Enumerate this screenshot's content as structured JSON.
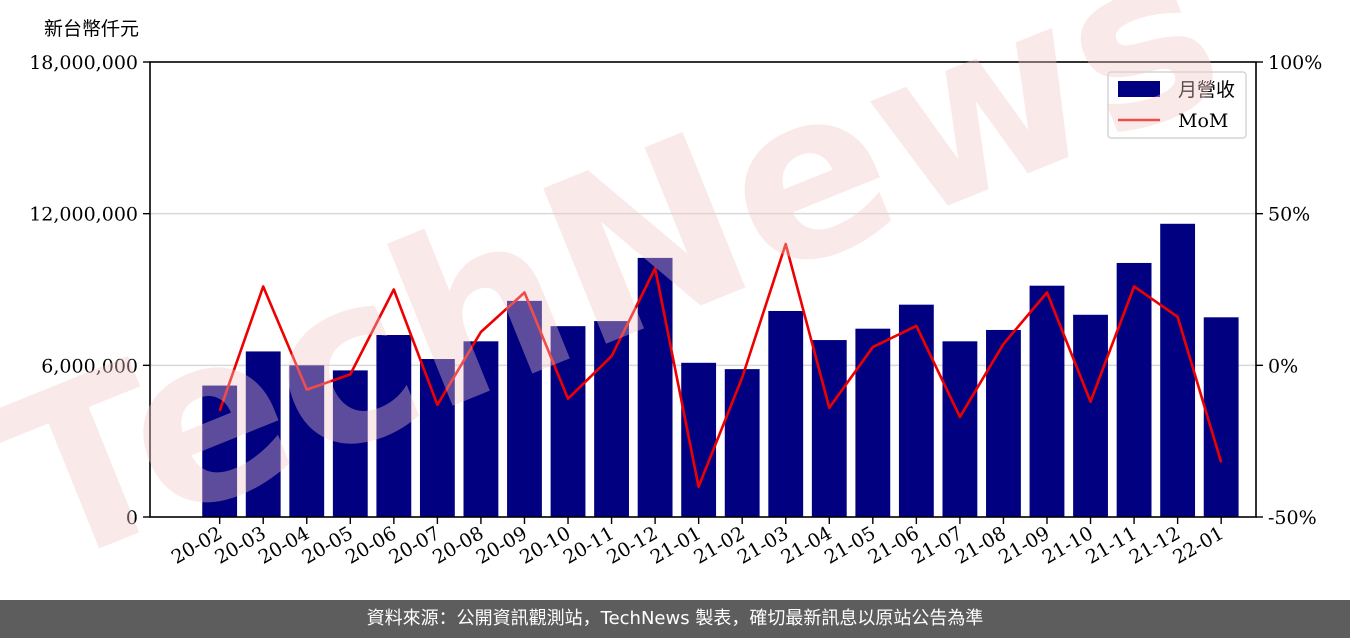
{
  "unit_label": "新台幣仟元",
  "watermark_text": "TechNews",
  "footer_text": "資料來源：公開資訊觀測站，TechNews 製表，確切最新訊息以原站公告為準",
  "colors": {
    "bar": "#000080",
    "line": "#ee0000",
    "grid": "#d9d9d9",
    "footer_bg": "#5d5d5d"
  },
  "chart_data": {
    "type": "bar",
    "categories": [
      "20-02",
      "20-03",
      "20-04",
      "20-05",
      "20-06",
      "20-07",
      "20-08",
      "20-09",
      "20-10",
      "20-11",
      "20-12",
      "21-01",
      "21-02",
      "21-03",
      "21-04",
      "21-05",
      "21-06",
      "21-07",
      "21-08",
      "21-09",
      "21-10",
      "21-11",
      "21-12",
      "22-01"
    ],
    "series": [
      {
        "name": "月營收",
        "axis": "left",
        "type": "bar",
        "values": [
          5200000,
          6550000,
          6000000,
          5800000,
          7200000,
          6250000,
          6950000,
          8550000,
          7550000,
          7750000,
          10250000,
          6100000,
          5850000,
          8150000,
          7000000,
          7450000,
          8400000,
          6950000,
          7400000,
          9150000,
          8000000,
          10050000,
          11600000,
          7900000
        ]
      },
      {
        "name": "MoM",
        "axis": "right",
        "type": "line",
        "values": [
          -15,
          26,
          -8,
          -3,
          25,
          -13,
          11,
          24,
          -11,
          3,
          32,
          -40,
          -4,
          40,
          -14,
          6,
          13,
          -17,
          7,
          24,
          -12,
          26,
          16,
          -32
        ]
      }
    ],
    "left_axis": {
      "ylim": [
        0,
        18000000
      ],
      "ticks": [
        0,
        6000000,
        12000000,
        18000000
      ],
      "tick_labels": [
        "0",
        "6,000,000",
        "12,000,000",
        "18,000,000"
      ]
    },
    "right_axis": {
      "ylim": [
        -50,
        100
      ],
      "ticks": [
        -50,
        0,
        50,
        100
      ],
      "tick_labels": [
        "-50%",
        "0%",
        "50%",
        "100%"
      ]
    },
    "grid": true,
    "legend": "top-right"
  }
}
